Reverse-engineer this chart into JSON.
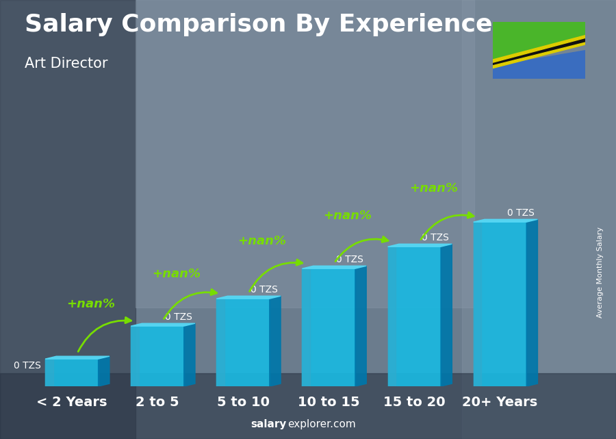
{
  "title": "Salary Comparison By Experience",
  "subtitle": "Art Director",
  "categories": [
    "< 2 Years",
    "2 to 5",
    "5 to 10",
    "10 to 15",
    "15 to 20",
    "20+ Years"
  ],
  "bar_heights": [
    1.0,
    2.2,
    3.2,
    4.3,
    5.1,
    6.0
  ],
  "value_labels": [
    "0 TZS",
    "0 TZS",
    "0 TZS",
    "0 TZS",
    "0 TZS",
    "0 TZS"
  ],
  "increase_labels": [
    "+nan%",
    "+nan%",
    "+nan%",
    "+nan%",
    "+nan%"
  ],
  "ylabel": "Average Monthly Salary",
  "footer_bold": "salary",
  "footer_regular": "explorer.com",
  "title_fontsize": 26,
  "subtitle_fontsize": 15,
  "cat_fontsize": 14,
  "bar_front_color": "#1ab8e0",
  "bar_top_color": "#55d8f5",
  "bar_side_color": "#0077aa",
  "bar_left_color": "#33aacc",
  "lime_color": "#77dd00",
  "white": "#ffffff",
  "bg_left": "#6a7a8a",
  "bg_right": "#7a8a9a",
  "figsize": [
    9.0,
    6.41
  ],
  "dpi": 100
}
